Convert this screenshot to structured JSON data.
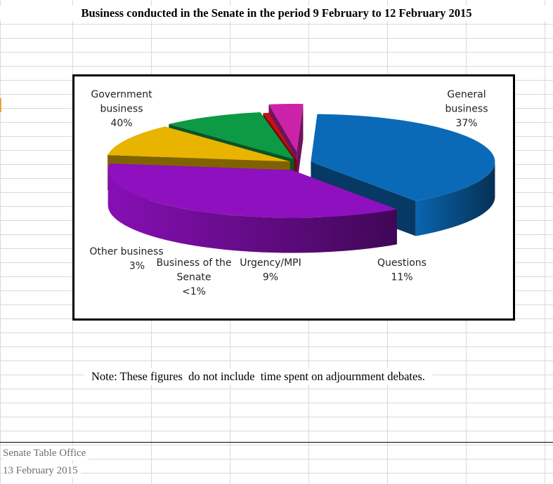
{
  "title": "Business conducted in the Senate in the period 9 February to 12 February 2015",
  "note": "Note: These figures  do not include  time spent on adjournment debates.",
  "footer": {
    "office": "Senate Table Office",
    "date": "13 February 2015"
  },
  "chart_data": {
    "type": "pie",
    "style": "3d-exploded",
    "title": "Business conducted in the Senate in the period 9 February to 12 February 2015",
    "slices": [
      {
        "label": "Government business",
        "value": 40,
        "display": "40%",
        "color": "#0a6ab8"
      },
      {
        "label": "General business",
        "value": 37,
        "display": "37%",
        "color": "#8e10bf"
      },
      {
        "label": "Questions",
        "value": 11,
        "display": "11%",
        "color": "#e8b400"
      },
      {
        "label": "Urgency/MPI",
        "value": 9,
        "display": "9%",
        "color": "#0c9a44"
      },
      {
        "label": "Business of the Senate",
        "value": 0.5,
        "display": "<1%",
        "color": "#cc1010"
      },
      {
        "label": "Other business",
        "value": 3,
        "display": "3%",
        "color": "#cc22aa"
      }
    ]
  }
}
